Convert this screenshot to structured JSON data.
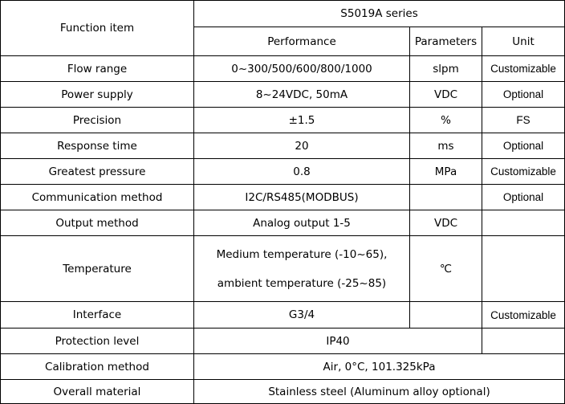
{
  "header": {
    "function_item": "Function item",
    "series": "S5019A series",
    "performance": "Performance",
    "parameters": "Parameters",
    "unit": "Unit"
  },
  "rows": [
    {
      "item": "Flow range",
      "performance": "0~300/500/600/800/1000",
      "parameters": "slpm",
      "unit": "Customizable"
    },
    {
      "item": "Power supply",
      "performance": "8~24VDC, 50mA",
      "parameters": "VDC",
      "unit": "Optional"
    },
    {
      "item": "Precision",
      "performance": "±1.5",
      "parameters": "%",
      "unit": "FS"
    },
    {
      "item": "Response time",
      "performance": "20",
      "parameters": "ms",
      "unit": "Optional"
    },
    {
      "item": "Greatest pressure",
      "performance": "0.8",
      "parameters": "MPa",
      "unit": "Customizable"
    },
    {
      "item": "Communication method",
      "performance": "I2C/RS485(MODBUS)",
      "parameters": "",
      "unit": "Optional"
    },
    {
      "item": "Output method",
      "performance": "Analog output 1-5",
      "parameters": "VDC",
      "unit": ""
    },
    {
      "item": "Temperature",
      "performance_lines": [
        "Medium temperature (-10~65),",
        "ambient temperature (-25~85)"
      ],
      "parameters": "℃",
      "unit": ""
    },
    {
      "item": "Interface",
      "performance": "G3/4",
      "parameters": "",
      "unit": "Customizable"
    },
    {
      "item": "Protection level",
      "performance": "IP40",
      "unit": ""
    },
    {
      "item": "Calibration method",
      "performance": "Air, 0°C, 101.325kPa"
    },
    {
      "item": "Overall material",
      "performance": "Stainless steel (Aluminum alloy optional)"
    }
  ]
}
